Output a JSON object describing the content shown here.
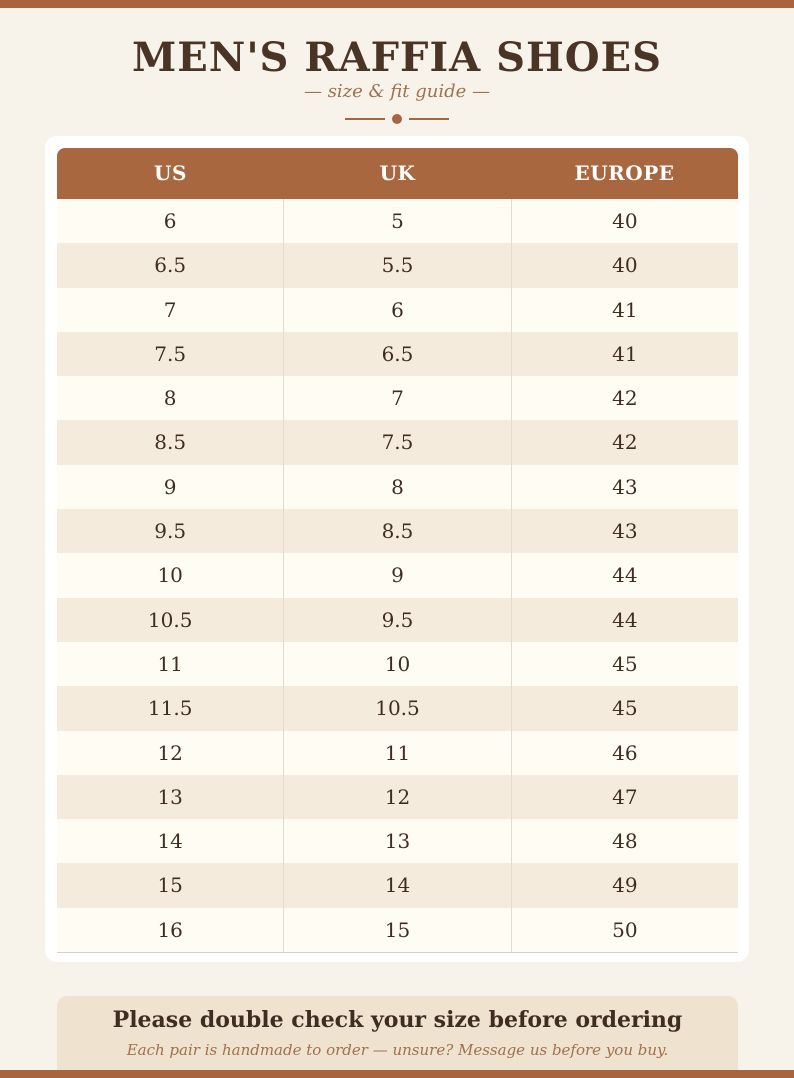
{
  "header": {
    "title": "MEN'S RAFFIA SHOES",
    "subtitle": "— size & fit guide —"
  },
  "table": {
    "columns": [
      "US",
      "UK",
      "EUROPE"
    ],
    "rows": [
      [
        "6",
        "5",
        "40"
      ],
      [
        "6.5",
        "5.5",
        "40"
      ],
      [
        "7",
        "6",
        "41"
      ],
      [
        "7.5",
        "6.5",
        "41"
      ],
      [
        "8",
        "7",
        "42"
      ],
      [
        "8.5",
        "7.5",
        "42"
      ],
      [
        "9",
        "8",
        "43"
      ],
      [
        "9.5",
        "8.5",
        "43"
      ],
      [
        "10",
        "9",
        "44"
      ],
      [
        "10.5",
        "9.5",
        "44"
      ],
      [
        "11",
        "10",
        "45"
      ],
      [
        "11.5",
        "10.5",
        "45"
      ],
      [
        "12",
        "11",
        "46"
      ],
      [
        "13",
        "12",
        "47"
      ],
      [
        "14",
        "13",
        "48"
      ],
      [
        "15",
        "14",
        "49"
      ],
      [
        "16",
        "15",
        "50"
      ]
    ]
  },
  "note": {
    "title": "Please double check your size before ordering",
    "subtitle": "Each pair is handmade to order — unsure? Message us before you buy."
  },
  "colors": {
    "accent": "#a8643f",
    "background": "#f8f3ea",
    "text": "#3f2d22"
  }
}
